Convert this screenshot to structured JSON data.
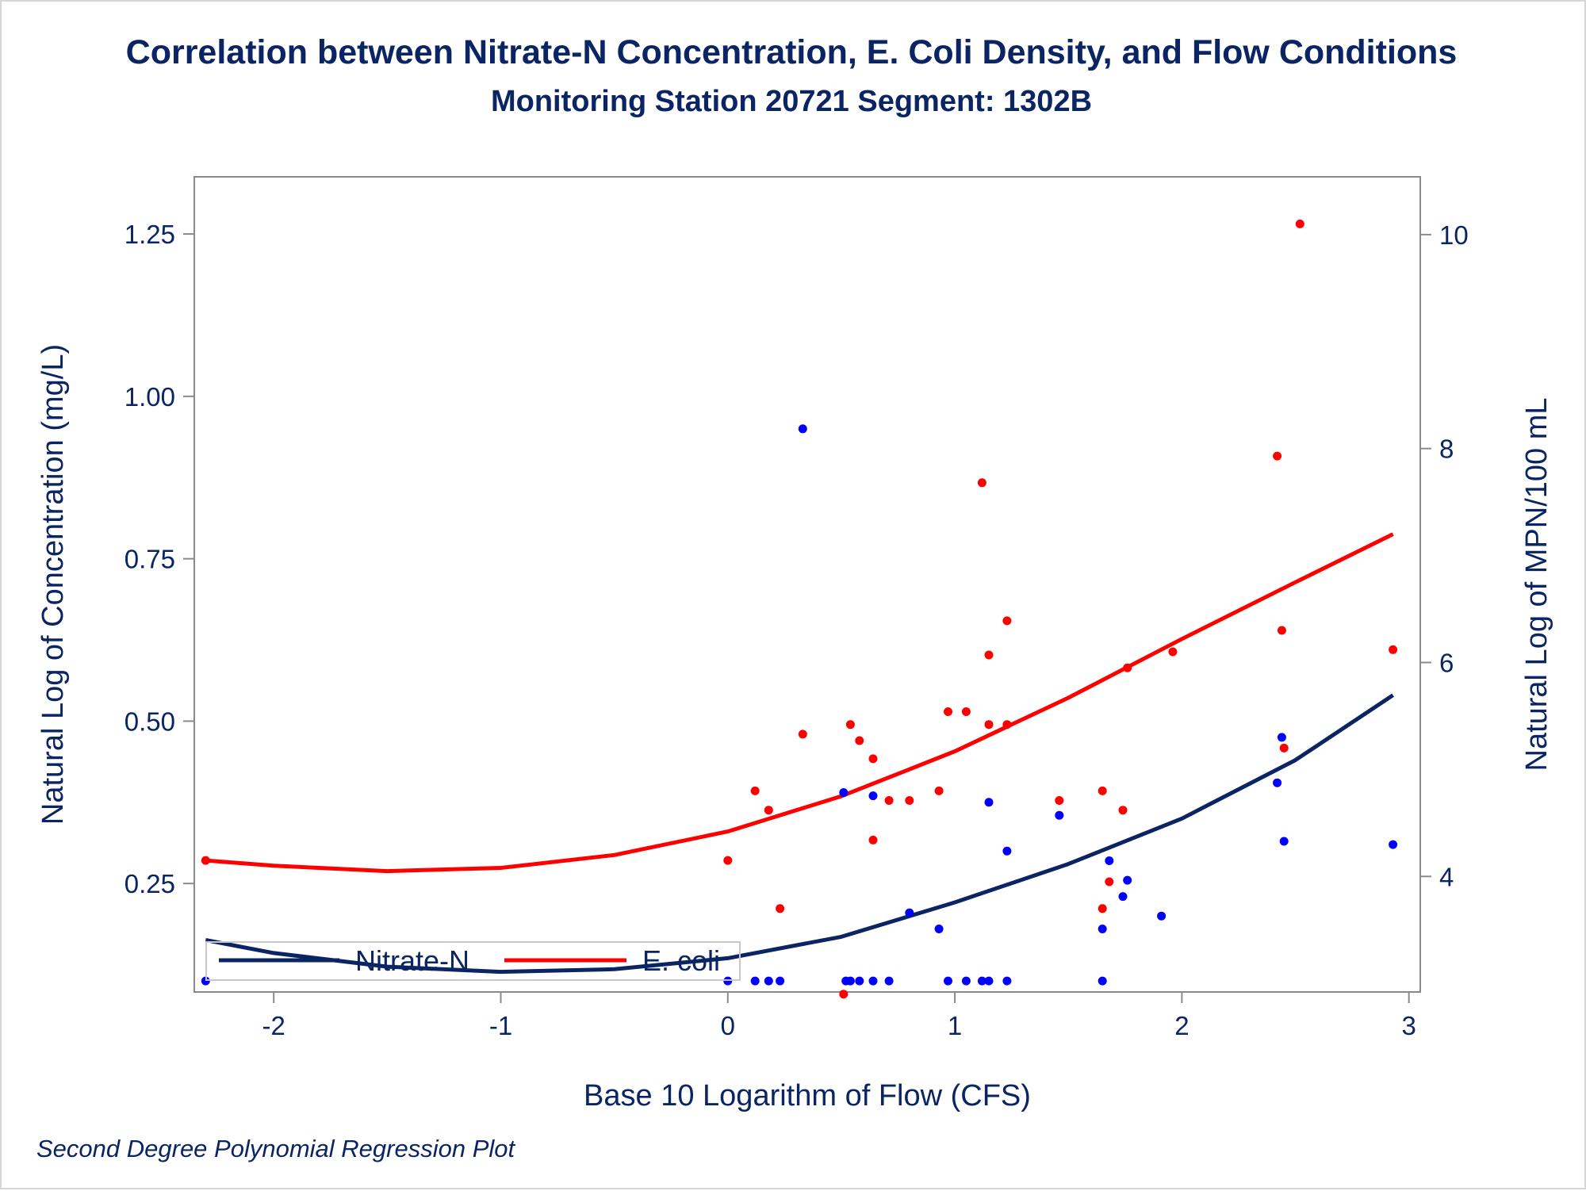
{
  "chart_data": {
    "type": "scatter",
    "title": "Correlation between Nitrate-N Concentration, E. Coli Density, and Flow Conditions",
    "subtitle": "Monitoring Station 20721 Segment: 1302B",
    "xlabel": "Base 10 Logarithm of Flow (CFS)",
    "ylabel_left": "Natural Log of Concentration (mg/L)",
    "ylabel_right": "Natural Log of MPN/100 mL",
    "footnote": "Second Degree Polynomial Regression Plot",
    "x_ticks": [
      "-2",
      "-1",
      "0",
      "1",
      "2",
      "3"
    ],
    "y_left_ticks": [
      "0.25",
      "0.50",
      "0.75",
      "1.00",
      "1.25"
    ],
    "y_right_ticks": [
      "4",
      "6",
      "8",
      "10"
    ],
    "xlim": [
      -2.35,
      3.05
    ],
    "ylim_left": [
      0.083,
      1.338
    ],
    "ylim_right": [
      2.92,
      10.54
    ],
    "grid": false,
    "legend_position": "bottom-left-inside",
    "series": [
      {
        "name": "Nitrate-N",
        "axis": "left",
        "color": "#0000ff",
        "points": [
          [
            -2.3,
            0.1
          ],
          [
            0.0,
            0.1
          ],
          [
            0.12,
            0.1
          ],
          [
            0.18,
            0.1
          ],
          [
            0.23,
            0.1
          ],
          [
            0.52,
            0.1
          ],
          [
            0.54,
            0.1
          ],
          [
            0.58,
            0.1
          ],
          [
            0.64,
            0.1
          ],
          [
            0.71,
            0.1
          ],
          [
            0.97,
            0.1
          ],
          [
            1.05,
            0.1
          ],
          [
            1.12,
            0.1
          ],
          [
            1.15,
            0.1
          ],
          [
            1.23,
            0.1
          ],
          [
            1.65,
            0.1
          ],
          [
            0.33,
            0.95
          ],
          [
            0.51,
            0.39
          ],
          [
            0.64,
            0.385
          ],
          [
            0.8,
            0.205
          ],
          [
            0.93,
            0.18
          ],
          [
            1.15,
            0.375
          ],
          [
            1.23,
            0.3
          ],
          [
            1.46,
            0.355
          ],
          [
            1.65,
            0.18
          ],
          [
            1.68,
            0.285
          ],
          [
            1.74,
            0.23
          ],
          [
            1.76,
            0.255
          ],
          [
            1.91,
            0.2
          ],
          [
            2.42,
            0.405
          ],
          [
            2.44,
            0.475
          ],
          [
            2.45,
            0.315
          ],
          [
            2.93,
            0.31
          ]
        ]
      },
      {
        "name": "E. coli",
        "axis": "right",
        "color": "#ff0000",
        "points": [
          [
            -2.3,
            4.15
          ],
          [
            0.0,
            4.15
          ],
          [
            0.12,
            4.8
          ],
          [
            0.18,
            4.62
          ],
          [
            0.23,
            3.7
          ],
          [
            0.33,
            5.33
          ],
          [
            0.51,
            2.9
          ],
          [
            0.54,
            5.42
          ],
          [
            0.58,
            5.27
          ],
          [
            0.64,
            5.1
          ],
          [
            0.64,
            4.34
          ],
          [
            0.71,
            4.71
          ],
          [
            0.8,
            4.71
          ],
          [
            0.93,
            4.8
          ],
          [
            0.97,
            5.54
          ],
          [
            1.05,
            5.54
          ],
          [
            1.12,
            7.68
          ],
          [
            1.15,
            5.42
          ],
          [
            1.15,
            6.07
          ],
          [
            1.23,
            6.39
          ],
          [
            1.23,
            5.42
          ],
          [
            1.46,
            4.71
          ],
          [
            1.65,
            4.8
          ],
          [
            1.65,
            3.7
          ],
          [
            1.68,
            3.95
          ],
          [
            1.74,
            4.62
          ],
          [
            1.76,
            5.95
          ],
          [
            1.96,
            6.1
          ],
          [
            2.42,
            7.93
          ],
          [
            2.44,
            6.3
          ],
          [
            2.45,
            5.2
          ],
          [
            2.52,
            10.1
          ],
          [
            2.93,
            6.12
          ]
        ]
      }
    ],
    "fits": [
      {
        "name": "Nitrate-N",
        "axis": "left",
        "color": "#0a2464",
        "points": [
          [
            -2.3,
            0.163
          ],
          [
            -2.0,
            0.143
          ],
          [
            -1.5,
            0.122
          ],
          [
            -1.0,
            0.114
          ],
          [
            -0.5,
            0.118
          ],
          [
            0.0,
            0.135
          ],
          [
            0.5,
            0.168
          ],
          [
            1.0,
            0.221
          ],
          [
            1.5,
            0.28
          ],
          [
            2.0,
            0.35
          ],
          [
            2.5,
            0.44
          ],
          [
            2.93,
            0.54
          ]
        ]
      },
      {
        "name": "E. coli",
        "axis": "right",
        "color": "#ff0000",
        "points": [
          [
            -2.3,
            4.15
          ],
          [
            -2.0,
            4.1
          ],
          [
            -1.5,
            4.05
          ],
          [
            -1.0,
            4.08
          ],
          [
            -0.5,
            4.2
          ],
          [
            0.0,
            4.42
          ],
          [
            0.5,
            4.75
          ],
          [
            1.0,
            5.17
          ],
          [
            1.5,
            5.67
          ],
          [
            2.0,
            6.22
          ],
          [
            2.5,
            6.75
          ],
          [
            2.93,
            7.2
          ]
        ]
      }
    ]
  }
}
